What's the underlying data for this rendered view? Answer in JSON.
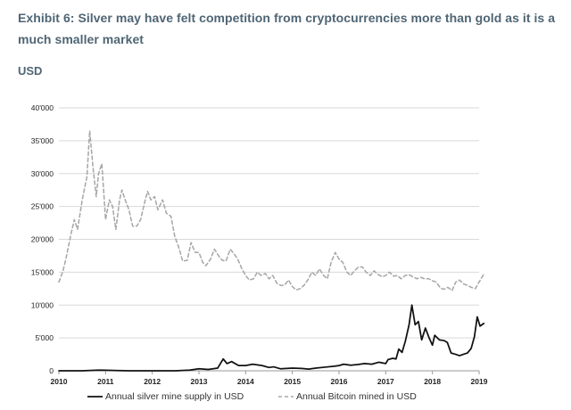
{
  "header": {
    "title": "Exhibit 6: Silver may have felt competition from cryptocurrencies more than gold as it is a much smaller market",
    "unit": "USD"
  },
  "chart_data": {
    "type": "line",
    "title": "Exhibit 6: Silver may have felt competition from cryptocurrencies more than gold as it is a much smaller market",
    "xlabel": "",
    "ylabel": "USD",
    "xlim": [
      2010,
      2019
    ],
    "ylim": [
      0,
      40000
    ],
    "grid": true,
    "legend_position": "bottom",
    "x_ticks": [
      2010,
      2011,
      2012,
      2013,
      2014,
      2015,
      2016,
      2017,
      2018,
      2019
    ],
    "y_ticks": [
      0,
      5000,
      10000,
      15000,
      20000,
      25000,
      30000,
      35000,
      40000
    ],
    "y_tick_labels": [
      "0",
      "5'000",
      "10'000",
      "15'000",
      "20'000",
      "25'000",
      "30'000",
      "35'000",
      "40'000"
    ],
    "series": [
      {
        "name": "Annual silver mine supply in USD",
        "style": "solid",
        "color": "#111111",
        "points": [
          [
            2010.0,
            0
          ],
          [
            2010.5,
            0
          ],
          [
            2010.85,
            100
          ],
          [
            2011.0,
            80
          ],
          [
            2011.5,
            0
          ],
          [
            2012.0,
            0
          ],
          [
            2012.5,
            0
          ],
          [
            2012.8,
            100
          ],
          [
            2013.0,
            300
          ],
          [
            2013.2,
            200
          ],
          [
            2013.4,
            400
          ],
          [
            2013.52,
            1800
          ],
          [
            2013.6,
            1100
          ],
          [
            2013.7,
            1400
          ],
          [
            2013.85,
            800
          ],
          [
            2014.0,
            800
          ],
          [
            2014.15,
            1000
          ],
          [
            2014.35,
            800
          ],
          [
            2014.5,
            500
          ],
          [
            2014.6,
            600
          ],
          [
            2014.75,
            300
          ],
          [
            2015.0,
            400
          ],
          [
            2015.2,
            350
          ],
          [
            2015.35,
            250
          ],
          [
            2015.5,
            400
          ],
          [
            2015.7,
            550
          ],
          [
            2015.9,
            700
          ],
          [
            2016.0,
            800
          ],
          [
            2016.1,
            1000
          ],
          [
            2016.25,
            850
          ],
          [
            2016.4,
            950
          ],
          [
            2016.55,
            1100
          ],
          [
            2016.7,
            1000
          ],
          [
            2016.85,
            1300
          ],
          [
            2017.0,
            1100
          ],
          [
            2017.05,
            1700
          ],
          [
            2017.15,
            1900
          ],
          [
            2017.22,
            1800
          ],
          [
            2017.28,
            3300
          ],
          [
            2017.35,
            2800
          ],
          [
            2017.42,
            4500
          ],
          [
            2017.5,
            7000
          ],
          [
            2017.56,
            10000
          ],
          [
            2017.63,
            7000
          ],
          [
            2017.7,
            7500
          ],
          [
            2017.77,
            4700
          ],
          [
            2017.85,
            6500
          ],
          [
            2017.93,
            5000
          ],
          [
            2018.0,
            3900
          ],
          [
            2018.05,
            5400
          ],
          [
            2018.15,
            4700
          ],
          [
            2018.25,
            4600
          ],
          [
            2018.32,
            4300
          ],
          [
            2018.4,
            2700
          ],
          [
            2018.5,
            2500
          ],
          [
            2018.58,
            2300
          ],
          [
            2018.66,
            2500
          ],
          [
            2018.75,
            2700
          ],
          [
            2018.83,
            3400
          ],
          [
            2018.9,
            5200
          ],
          [
            2018.96,
            8200
          ],
          [
            2019.02,
            6800
          ],
          [
            2019.1,
            7200
          ]
        ]
      },
      {
        "name": "Annual Bitcoin mined in USD",
        "style": "dashed",
        "color": "#a8a8a8",
        "points": [
          [
            2010.0,
            13500
          ],
          [
            2010.08,
            15000
          ],
          [
            2010.15,
            17000
          ],
          [
            2010.25,
            20500
          ],
          [
            2010.33,
            23000
          ],
          [
            2010.4,
            21500
          ],
          [
            2010.5,
            26000
          ],
          [
            2010.6,
            29500
          ],
          [
            2010.66,
            36500
          ],
          [
            2010.73,
            31000
          ],
          [
            2010.8,
            26500
          ],
          [
            2010.85,
            30000
          ],
          [
            2010.92,
            31500
          ],
          [
            2011.0,
            23000
          ],
          [
            2011.08,
            26000
          ],
          [
            2011.15,
            25000
          ],
          [
            2011.22,
            21500
          ],
          [
            2011.3,
            26000
          ],
          [
            2011.35,
            27500
          ],
          [
            2011.42,
            26000
          ],
          [
            2011.5,
            24500
          ],
          [
            2011.58,
            22000
          ],
          [
            2011.67,
            22000
          ],
          [
            2011.75,
            23000
          ],
          [
            2011.85,
            26000
          ],
          [
            2011.9,
            27300
          ],
          [
            2011.97,
            26000
          ],
          [
            2012.05,
            26500
          ],
          [
            2012.12,
            24500
          ],
          [
            2012.22,
            26000
          ],
          [
            2012.3,
            24000
          ],
          [
            2012.4,
            23500
          ],
          [
            2012.48,
            20500
          ],
          [
            2012.58,
            18500
          ],
          [
            2012.65,
            16700
          ],
          [
            2012.75,
            16800
          ],
          [
            2012.83,
            19500
          ],
          [
            2012.92,
            18000
          ],
          [
            2013.0,
            18000
          ],
          [
            2013.08,
            16500
          ],
          [
            2013.15,
            16000
          ],
          [
            2013.25,
            17000
          ],
          [
            2013.33,
            18500
          ],
          [
            2013.42,
            17500
          ],
          [
            2013.5,
            16800
          ],
          [
            2013.58,
            16700
          ],
          [
            2013.67,
            18500
          ],
          [
            2013.75,
            17800
          ],
          [
            2013.83,
            17000
          ],
          [
            2013.92,
            15500
          ],
          [
            2014.0,
            14500
          ],
          [
            2014.08,
            13800
          ],
          [
            2014.17,
            14000
          ],
          [
            2014.25,
            15000
          ],
          [
            2014.33,
            14500
          ],
          [
            2014.42,
            14800
          ],
          [
            2014.5,
            14000
          ],
          [
            2014.58,
            14500
          ],
          [
            2014.67,
            13300
          ],
          [
            2014.75,
            13000
          ],
          [
            2014.83,
            13000
          ],
          [
            2014.92,
            13800
          ],
          [
            2015.0,
            12800
          ],
          [
            2015.08,
            12300
          ],
          [
            2015.17,
            12500
          ],
          [
            2015.25,
            13000
          ],
          [
            2015.33,
            13800
          ],
          [
            2015.42,
            15000
          ],
          [
            2015.5,
            14500
          ],
          [
            2015.58,
            15500
          ],
          [
            2015.67,
            14500
          ],
          [
            2015.75,
            14000
          ],
          [
            2015.83,
            16500
          ],
          [
            2015.92,
            18000
          ],
          [
            2016.0,
            17000
          ],
          [
            2016.08,
            16500
          ],
          [
            2016.17,
            15000
          ],
          [
            2016.25,
            14500
          ],
          [
            2016.33,
            15200
          ],
          [
            2016.42,
            15800
          ],
          [
            2016.5,
            15800
          ],
          [
            2016.58,
            15000
          ],
          [
            2016.67,
            14500
          ],
          [
            2016.75,
            15200
          ],
          [
            2016.83,
            14700
          ],
          [
            2016.92,
            14300
          ],
          [
            2017.0,
            14500
          ],
          [
            2017.08,
            15000
          ],
          [
            2017.17,
            14400
          ],
          [
            2017.25,
            14500
          ],
          [
            2017.33,
            14000
          ],
          [
            2017.42,
            14500
          ],
          [
            2017.5,
            14600
          ],
          [
            2017.58,
            14300
          ],
          [
            2017.67,
            14000
          ],
          [
            2017.75,
            14200
          ],
          [
            2017.83,
            14000
          ],
          [
            2017.92,
            14000
          ],
          [
            2018.0,
            13700
          ],
          [
            2018.08,
            13500
          ],
          [
            2018.17,
            12600
          ],
          [
            2018.25,
            12400
          ],
          [
            2018.33,
            12700
          ],
          [
            2018.42,
            12200
          ],
          [
            2018.5,
            13500
          ],
          [
            2018.58,
            13800
          ],
          [
            2018.67,
            13200
          ],
          [
            2018.75,
            13000
          ],
          [
            2018.83,
            12700
          ],
          [
            2018.92,
            12500
          ],
          [
            2019.0,
            13500
          ],
          [
            2019.1,
            14700
          ]
        ]
      }
    ]
  }
}
